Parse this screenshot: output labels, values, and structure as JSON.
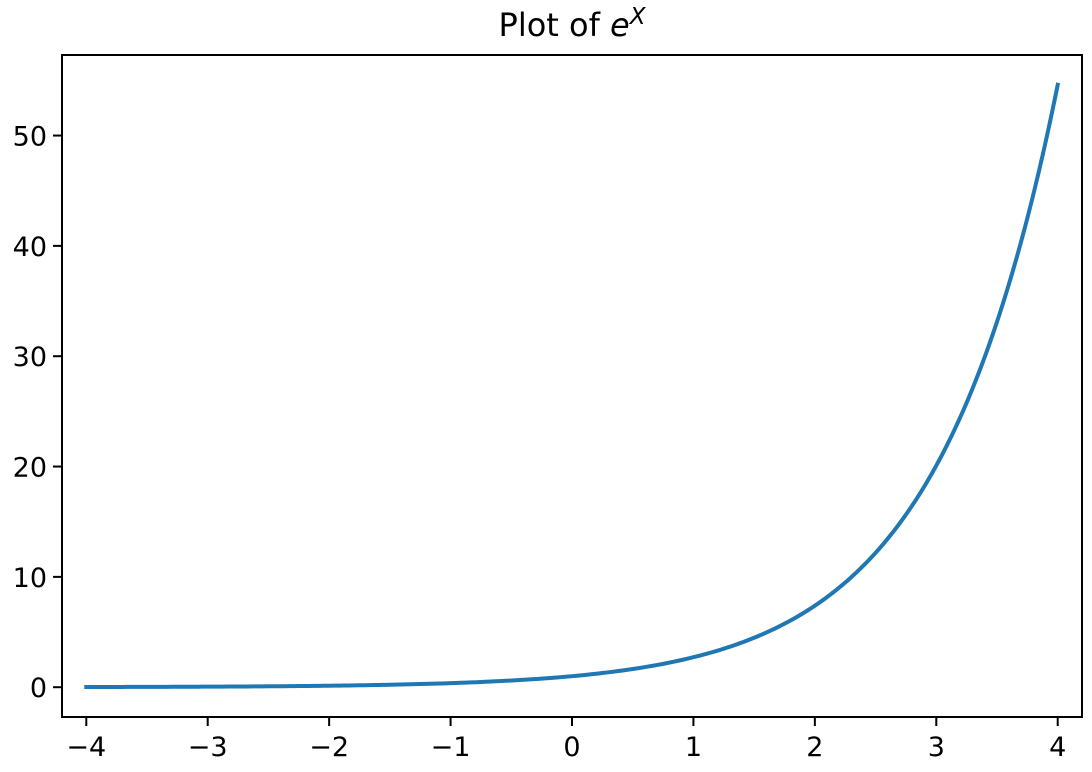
{
  "chart_data": {
    "type": "line",
    "title": "Plot of ",
    "title_math": {
      "base": "e",
      "exponent": "X"
    },
    "xlabel": "",
    "ylabel": "",
    "xlim": [
      -4.2,
      4.2
    ],
    "ylim": [
      -2.7,
      57.3
    ],
    "grid": false,
    "legend": "none",
    "x_ticks": [
      -4,
      -3,
      -2,
      -1,
      0,
      1,
      2,
      3,
      4
    ],
    "x_tick_labels": [
      "−4",
      "−3",
      "−2",
      "−1",
      "0",
      "1",
      "2",
      "3",
      "4"
    ],
    "y_ticks": [
      0,
      10,
      20,
      30,
      40,
      50
    ],
    "y_tick_labels": [
      "0",
      "10",
      "20",
      "30",
      "40",
      "50"
    ],
    "series": [
      {
        "color": "#1f77b4",
        "x": [
          -4.0,
          -3.5,
          -3.0,
          -2.5,
          -2.0,
          -1.5,
          -1.0,
          -0.5,
          0.0,
          0.5,
          1.0,
          1.25,
          1.5,
          1.75,
          2.0,
          2.25,
          2.5,
          2.75,
          3.0,
          3.25,
          3.5,
          3.75,
          4.0
        ],
        "y": [
          0.018,
          0.03,
          0.05,
          0.082,
          0.135,
          0.223,
          0.368,
          0.607,
          1.0,
          1.649,
          2.718,
          3.49,
          4.482,
          5.755,
          7.389,
          9.488,
          12.18,
          15.64,
          20.09,
          25.79,
          33.12,
          42.52,
          54.6
        ]
      }
    ]
  }
}
